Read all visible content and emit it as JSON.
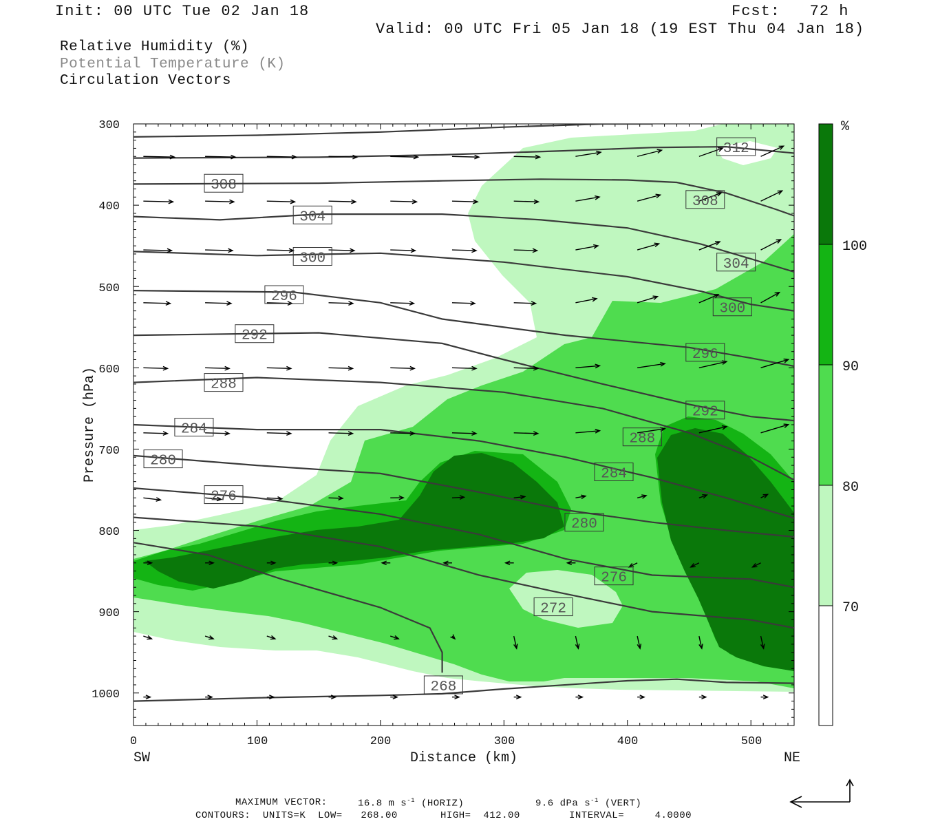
{
  "header": {
    "init": "Init: 00 UTC Tue 02 Jan 18",
    "fcst": "Fcst:   72 h",
    "valid": "Valid: 00 UTC Fri 05 Jan 18 (19 EST Thu 04 Jan 18)"
  },
  "legend": {
    "rh": "Relative Humidity (%)",
    "theta": "Potential Temperature (K)",
    "vectors": "Circulation Vectors"
  },
  "colors": {
    "rh70": "#bff7bf",
    "rh80": "#4fdc4f",
    "rh90": "#14b414",
    "rh100": "#0a780a",
    "contour": "#3a3a3a",
    "label_gray": "#8a8a8a"
  },
  "chart_data": {
    "type": "cross-section",
    "xlabel": "Distance (km)",
    "ylabel": "Pressure (hPa)",
    "xlim": [
      0,
      535
    ],
    "ylim": [
      1040,
      300
    ],
    "x_ticks": [
      "0",
      "100",
      "200",
      "300",
      "400",
      "500"
    ],
    "y_ticks": [
      "300",
      "400",
      "500",
      "600",
      "700",
      "800",
      "900",
      "1000"
    ],
    "end_labels": {
      "left": "SW",
      "right": "NE"
    },
    "colorbar": {
      "unit": "%",
      "levels": [
        "70",
        "80",
        "90",
        "100"
      ]
    },
    "isentropes": [
      {
        "label": "312",
        "points": [
          [
            0,
            316
          ],
          [
            100,
            314
          ],
          [
            200,
            310
          ],
          [
            300,
            304
          ],
          [
            380,
            300
          ],
          [
            420,
            300
          ]
        ]
      },
      {
        "label": "312",
        "points": [
          [
            0,
            342
          ],
          [
            150,
            341
          ],
          [
            250,
            338
          ],
          [
            350,
            333
          ],
          [
            420,
            329
          ],
          [
            480,
            328
          ],
          [
            535,
            336
          ]
        ]
      },
      {
        "label": "308",
        "points": [
          [
            0,
            374
          ],
          [
            150,
            373
          ],
          [
            250,
            370
          ],
          [
            330,
            368
          ],
          [
            400,
            369
          ],
          [
            440,
            372
          ],
          [
            480,
            385
          ],
          [
            520,
            405
          ],
          [
            535,
            413
          ]
        ]
      },
      {
        "label": "304",
        "points": [
          [
            0,
            414
          ],
          [
            70,
            418
          ],
          [
            150,
            411
          ],
          [
            250,
            411
          ],
          [
            330,
            418
          ],
          [
            400,
            428
          ],
          [
            460,
            448
          ],
          [
            500,
            466
          ],
          [
            535,
            482
          ]
        ]
      },
      {
        "label": "300",
        "points": [
          [
            0,
            457
          ],
          [
            100,
            462
          ],
          [
            200,
            459
          ],
          [
            300,
            470
          ],
          [
            400,
            488
          ],
          [
            460,
            506
          ],
          [
            500,
            522
          ],
          [
            535,
            530
          ]
        ]
      },
      {
        "label": "296",
        "points": [
          [
            0,
            505
          ],
          [
            130,
            507
          ],
          [
            200,
            520
          ],
          [
            250,
            540
          ],
          [
            350,
            560
          ],
          [
            450,
            575
          ],
          [
            500,
            588
          ],
          [
            535,
            598
          ]
        ]
      },
      {
        "label": "292",
        "points": [
          [
            0,
            560
          ],
          [
            150,
            557
          ],
          [
            250,
            570
          ],
          [
            300,
            590
          ],
          [
            380,
            620
          ],
          [
            450,
            645
          ],
          [
            500,
            660
          ],
          [
            535,
            665
          ]
        ]
      },
      {
        "label": "288",
        "points": [
          [
            0,
            618
          ],
          [
            100,
            612
          ],
          [
            200,
            618
          ],
          [
            300,
            630
          ],
          [
            380,
            650
          ],
          [
            450,
            680
          ],
          [
            500,
            710
          ],
          [
            535,
            738
          ]
        ]
      },
      {
        "label": "284",
        "points": [
          [
            0,
            670
          ],
          [
            100,
            676
          ],
          [
            200,
            676
          ],
          [
            280,
            690
          ],
          [
            350,
            710
          ],
          [
            420,
            735
          ],
          [
            480,
            760
          ],
          [
            535,
            785
          ]
        ]
      },
      {
        "label": "280",
        "points": [
          [
            0,
            708
          ],
          [
            100,
            720
          ],
          [
            200,
            730
          ],
          [
            280,
            753
          ],
          [
            350,
            775
          ],
          [
            420,
            790
          ],
          [
            480,
            800
          ],
          [
            535,
            808
          ]
        ]
      },
      {
        "label": "276",
        "points": [
          [
            0,
            748
          ],
          [
            100,
            760
          ],
          [
            200,
            780
          ],
          [
            280,
            805
          ],
          [
            350,
            835
          ],
          [
            420,
            855
          ],
          [
            500,
            860
          ],
          [
            535,
            870
          ]
        ]
      },
      {
        "label": "272",
        "points": [
          [
            0,
            784
          ],
          [
            100,
            795
          ],
          [
            200,
            820
          ],
          [
            280,
            855
          ],
          [
            340,
            875
          ],
          [
            420,
            900
          ],
          [
            500,
            910
          ],
          [
            535,
            920
          ]
        ]
      },
      {
        "label": "268",
        "points": [
          [
            0,
            815
          ],
          [
            60,
            830
          ],
          [
            120,
            860
          ],
          [
            200,
            895
          ],
          [
            240,
            920
          ],
          [
            250,
            950
          ],
          [
            250,
            975
          ]
        ]
      },
      {
        "label": "268",
        "points": [
          [
            0,
            1010
          ],
          [
            100,
            1006
          ],
          [
            200,
            1003
          ],
          [
            250,
            1001
          ],
          [
            300,
            995
          ],
          [
            400,
            985
          ],
          [
            440,
            983
          ],
          [
            480,
            987
          ],
          [
            535,
            988
          ]
        ]
      }
    ],
    "contour_labels": [
      {
        "text": "312",
        "x": 488,
        "p": 328
      },
      {
        "text": "308",
        "x": 73,
        "p": 373
      },
      {
        "text": "308",
        "x": 463,
        "p": 393
      },
      {
        "text": "304",
        "x": 145,
        "p": 412
      },
      {
        "text": "304",
        "x": 488,
        "p": 470
      },
      {
        "text": "300",
        "x": 145,
        "p": 463
      },
      {
        "text": "300",
        "x": 485,
        "p": 525
      },
      {
        "text": "296",
        "x": 122,
        "p": 510
      },
      {
        "text": "296",
        "x": 463,
        "p": 581
      },
      {
        "text": "292",
        "x": 98,
        "p": 558
      },
      {
        "text": "292",
        "x": 463,
        "p": 652
      },
      {
        "text": "288",
        "x": 73,
        "p": 618
      },
      {
        "text": "288",
        "x": 412,
        "p": 685
      },
      {
        "text": "284",
        "x": 49,
        "p": 673
      },
      {
        "text": "284",
        "x": 389,
        "p": 728
      },
      {
        "text": "280",
        "x": 24,
        "p": 712
      },
      {
        "text": "280",
        "x": 365,
        "p": 790
      },
      {
        "text": "276",
        "x": 73,
        "p": 756
      },
      {
        "text": "276",
        "x": 389,
        "p": 856
      },
      {
        "text": "272",
        "x": 340,
        "p": 894
      },
      {
        "text": "268",
        "x": 251,
        "p": 990
      }
    ],
    "footer": {
      "max_vector_label": "MAXIMUM VECTOR:",
      "max_vector_horiz": "16.8 m s",
      "horiz_sup": "-1",
      "horiz_unit": "(HORIZ)",
      "max_vector_vert": "9.6 dPa s",
      "vert_sup": "-1",
      "vert_unit": "(VERT)",
      "contours_line": "CONTOURS:  UNITS=K  LOW=   268.00       HIGH=  412.00        INTERVAL=     4.0000"
    }
  }
}
